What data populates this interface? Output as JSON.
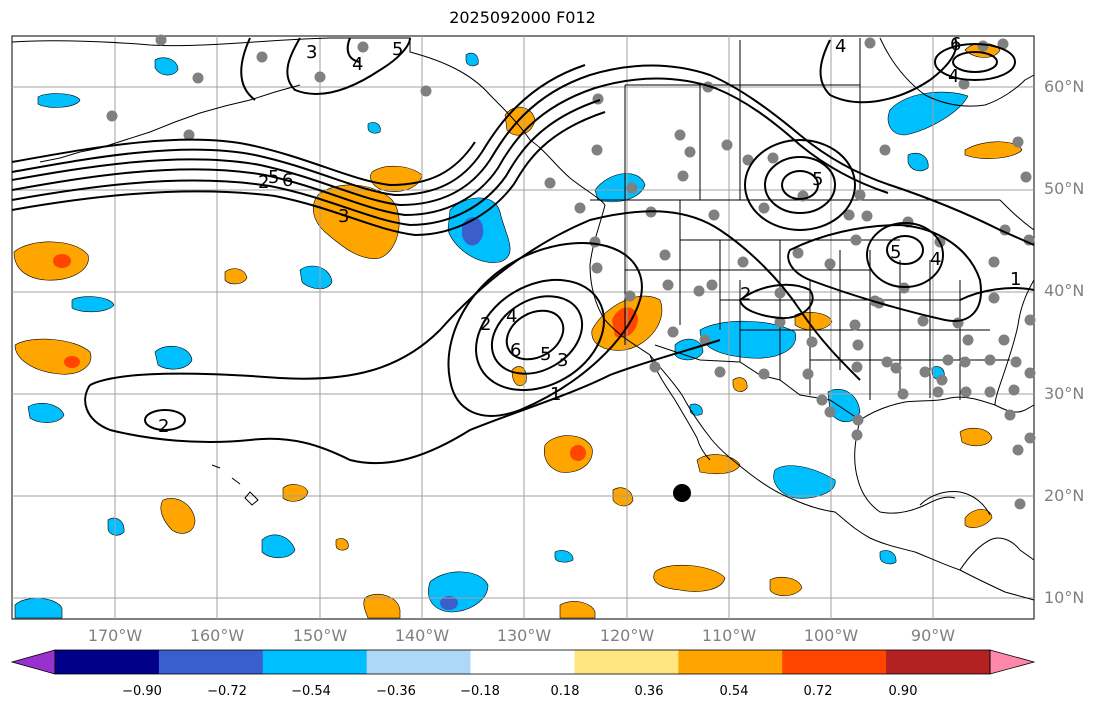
{
  "title": "2025092000 F012",
  "lat_labels": [
    "60°N",
    "50°N",
    "40°N",
    "30°N",
    "20°N",
    "10°N"
  ],
  "lon_labels": [
    "170°W",
    "160°W",
    "150°W",
    "140°W",
    "130°W",
    "120°W",
    "110°W",
    "100°W",
    "90°W"
  ],
  "contour_labels": [
    "2",
    "3",
    "4",
    "5",
    "6",
    "1"
  ],
  "colorbar": {
    "ticks": [
      "−0.90",
      "−0.72",
      "−0.54",
      "−0.36",
      "−0.18",
      "0.18",
      "0.36",
      "0.54",
      "0.72",
      "0.90"
    ],
    "colors": [
      "#9932cc",
      "#00008b",
      "#3a5fcd",
      "#00bfff",
      "#add8f6",
      "#ffffff",
      "#ffe680",
      "#ffa500",
      "#ff4500",
      "#b22222",
      "#ff88aa"
    ]
  },
  "colors": {
    "land_outline": "#000000",
    "station": "#808080",
    "grid": "#a0a0a0"
  }
}
